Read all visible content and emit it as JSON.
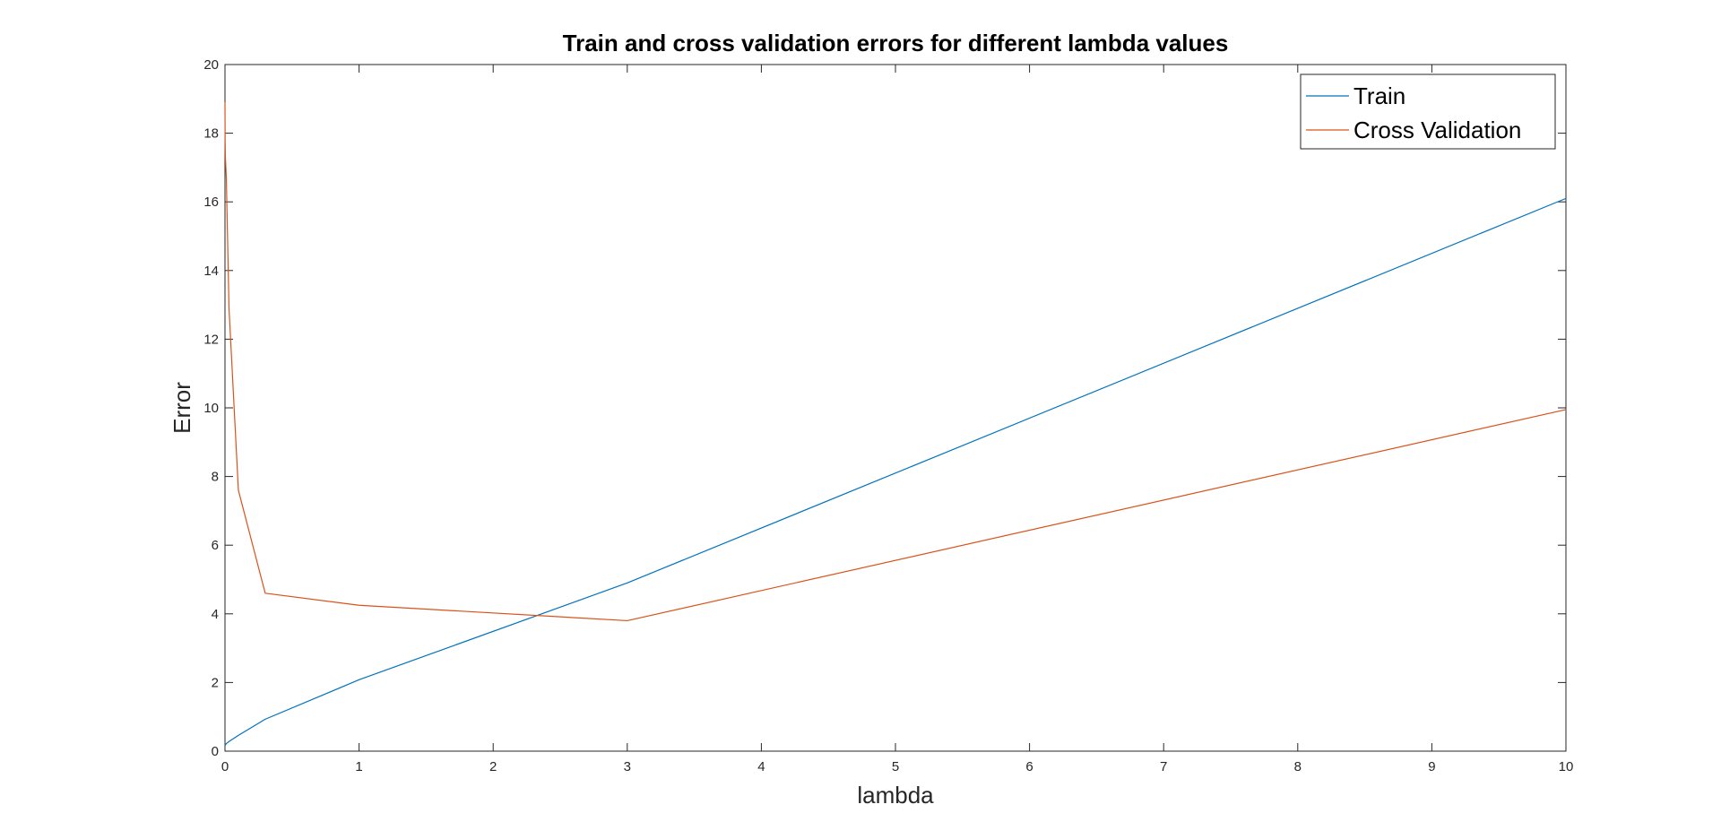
{
  "chart_data": {
    "type": "line",
    "title": "Train and cross validation errors for different lambda values",
    "xlabel": "lambda",
    "ylabel": "Error",
    "xlim": [
      0,
      10
    ],
    "ylim": [
      0,
      20
    ],
    "xticks": [
      "0",
      "1",
      "2",
      "3",
      "4",
      "5",
      "6",
      "7",
      "8",
      "9",
      "10"
    ],
    "yticks": [
      "0",
      "2",
      "4",
      "6",
      "8",
      "10",
      "12",
      "14",
      "16",
      "18",
      "20"
    ],
    "grid": false,
    "legend_position": "top-right",
    "series": [
      {
        "name": "Train",
        "color": "#0072BD",
        "x": [
          0,
          0.001,
          0.003,
          0.01,
          0.03,
          0.1,
          0.3,
          1,
          3,
          10
        ],
        "y": [
          0.17,
          0.18,
          0.18,
          0.22,
          0.28,
          0.46,
          0.93,
          2.08,
          4.9,
          16.1
        ]
      },
      {
        "name": "Cross Validation",
        "color": "#D95319",
        "x": [
          0,
          0.001,
          0.003,
          0.01,
          0.03,
          0.1,
          0.3,
          1,
          3,
          10
        ],
        "y": [
          18.9,
          17.8,
          17.3,
          16.7,
          12.9,
          7.6,
          4.6,
          4.25,
          3.8,
          9.95
        ]
      }
    ]
  }
}
